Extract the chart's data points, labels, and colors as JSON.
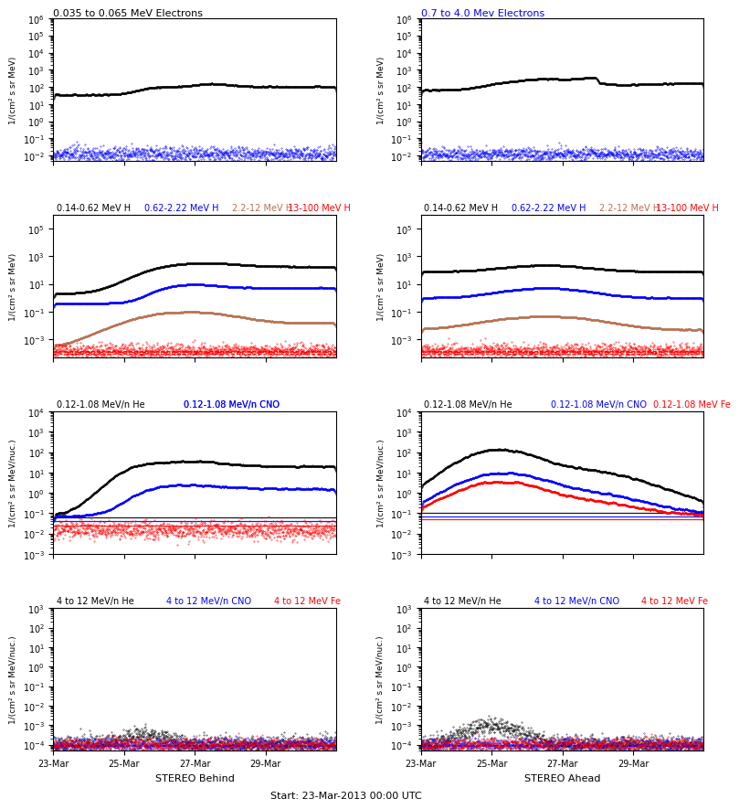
{
  "title_row0_left_text": "0.035 to 0.065 MeV Electrons",
  "title_row0_left_color": "black",
  "title_row0_right_text": "0.7 to 4.0 Mev Electrons",
  "title_row0_right_color": "blue",
  "title_row1_texts": [
    "0.14-0.62 MeV H",
    "0.62-2.22 MeV H",
    "2.2-12 MeV H",
    "13-100 MeV H"
  ],
  "title_row1_colors": [
    "black",
    "blue",
    "#b87050",
    "red"
  ],
  "title_row2_texts": [
    "0.12-1.08 MeV/n He",
    "0.12-1.08 MeV/n CNO",
    "0.12-1.08 MeV Fe"
  ],
  "title_row2_colors": [
    "black",
    "blue",
    "red"
  ],
  "title_row3_texts": [
    "4 to 12 MeV/n He",
    "4 to 12 MeV/n CNO",
    "4 to 12 MeV Fe"
  ],
  "title_row3_colors": [
    "black",
    "blue",
    "red"
  ],
  "ylabel_mev": "1/(cm² s sr MeV)",
  "ylabel_mevnuc": "1/(cm² s sr MeV/nuc.)",
  "xlabel_left": "STEREO Behind",
  "xlabel_center": "Start: 23-Mar-2013 00:00 UTC",
  "xlabel_right": "STEREO Ahead",
  "xtick_labels": [
    "23-Mar",
    "25-Mar",
    "27-Mar",
    "29-Mar"
  ],
  "brown_color": "#b87050",
  "seed": 12345
}
